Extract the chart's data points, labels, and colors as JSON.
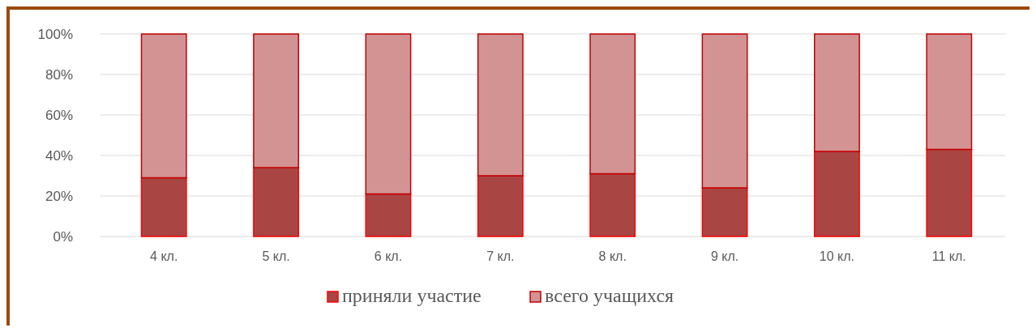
{
  "chart_data": {
    "type": "bar",
    "stacked": true,
    "categories": [
      "4 кл.",
      "5 кл.",
      "6 кл.",
      "7 кл.",
      "8 кл.",
      "9 кл.",
      "10 кл.",
      "11 кл."
    ],
    "series": [
      {
        "name": "приняли участие",
        "color": "#a94644",
        "values": [
          29,
          34,
          21,
          30,
          31,
          24,
          42,
          43
        ]
      },
      {
        "name": "всего учащихся",
        "color": "#d39393",
        "values": [
          71,
          66,
          79,
          70,
          69,
          76,
          58,
          57
        ]
      }
    ],
    "ylim": [
      0,
      100
    ],
    "yticks": [
      {
        "value": 0,
        "label": "0%"
      },
      {
        "value": 20,
        "label": "20%"
      },
      {
        "value": 40,
        "label": "40%"
      },
      {
        "value": 60,
        "label": "60%"
      },
      {
        "value": 80,
        "label": "80%"
      },
      {
        "value": 100,
        "label": "100%"
      }
    ],
    "grid": "y",
    "legend": "bottom"
  }
}
